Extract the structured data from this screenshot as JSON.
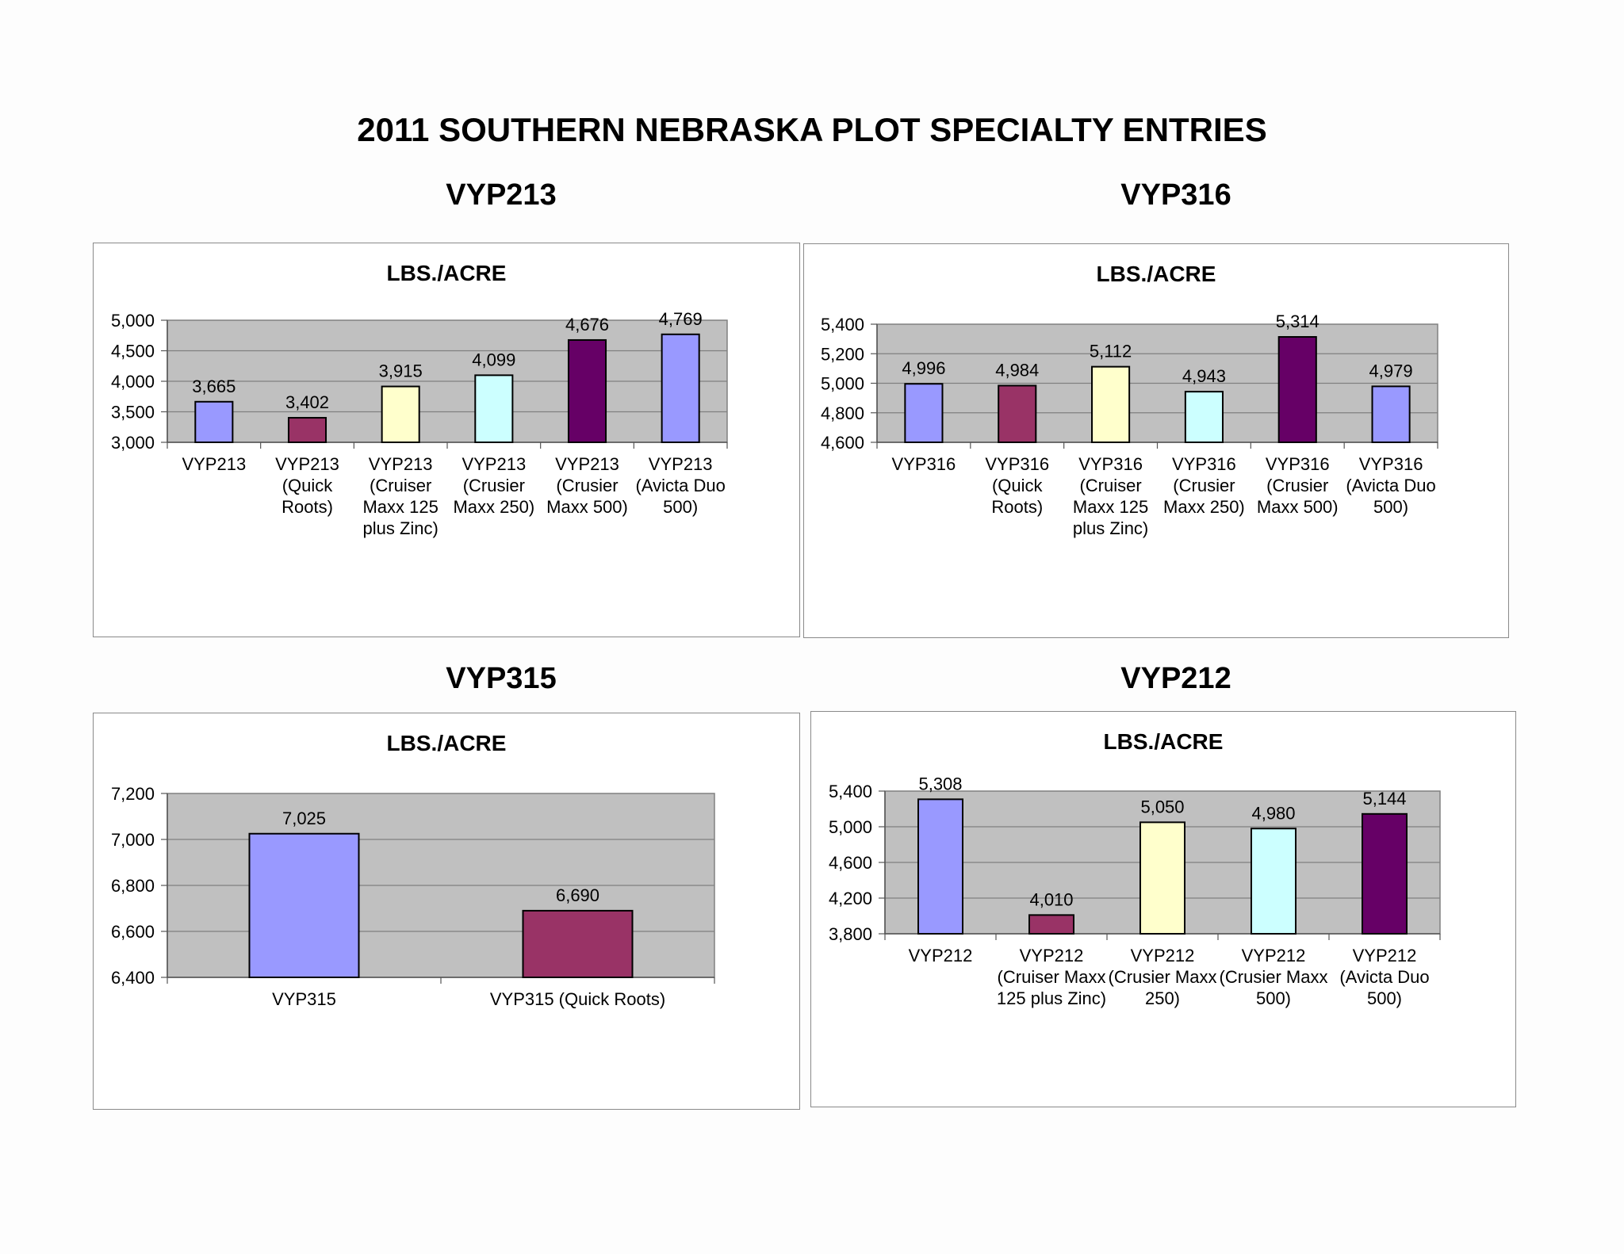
{
  "page": {
    "title": "2011 SOUTHERN NEBRASKA PLOT SPECIALTY ENTRIES"
  },
  "colors": {
    "plot_background": "#c0c0c0",
    "gridline": "#808080",
    "bar_outline": "#000000",
    "periwinkle": "#9999ff",
    "plum": "#993366",
    "light_yellow": "#ffffcc",
    "light_cyan": "#ccffff",
    "dark_purple": "#660066"
  },
  "chart_data": [
    {
      "type": "bar",
      "heading": "VYP213",
      "title": "LBS./ACRE",
      "categories": [
        "VYP213",
        "VYP213 (Quick Roots)",
        "VYP213 (Cruiser Maxx 125 plus Zinc)",
        "VYP213 (Crusier Maxx 250)",
        "VYP213 (Crusier Maxx 500)",
        "VYP213 (Avicta Duo 500)"
      ],
      "category_lines": [
        [
          "VYP213"
        ],
        [
          "VYP213",
          "(Quick",
          "Roots)"
        ],
        [
          "VYP213",
          "(Cruiser",
          "Maxx 125",
          "plus Zinc)"
        ],
        [
          "VYP213",
          "(Crusier",
          "Maxx 250)"
        ],
        [
          "VYP213",
          "(Crusier",
          "Maxx 500)"
        ],
        [
          "VYP213",
          "(Avicta Duo",
          "500)"
        ]
      ],
      "values": [
        3665,
        3402,
        3915,
        4099,
        4676,
        4769
      ],
      "value_labels": [
        "3,665",
        "3,402",
        "3,915",
        "4,099",
        "4,676",
        "4,769"
      ],
      "bar_colors": [
        "#9999ff",
        "#993366",
        "#ffffcc",
        "#ccffff",
        "#660066",
        "#9999ff"
      ],
      "ylim": [
        3000,
        5000
      ],
      "yticks": [
        3000,
        3500,
        4000,
        4500,
        5000
      ],
      "ytick_labels": [
        "3,000",
        "3,500",
        "4,000",
        "4,500",
        "5,000"
      ],
      "grid": true,
      "legend": "none"
    },
    {
      "type": "bar",
      "heading": "VYP316",
      "title": "LBS./ACRE",
      "categories": [
        "VYP316",
        "VYP316 (Quick Roots)",
        "VYP316 (Cruiser Maxx 125 plus Zinc)",
        "VYP316 (Crusier Maxx 250)",
        "VYP316 (Crusier Maxx 500)",
        "VYP316 (Avicta Duo 500)"
      ],
      "category_lines": [
        [
          "VYP316"
        ],
        [
          "VYP316",
          "(Quick",
          "Roots)"
        ],
        [
          "VYP316",
          "(Cruiser",
          "Maxx 125",
          "plus Zinc)"
        ],
        [
          "VYP316",
          "(Crusier",
          "Maxx 250)"
        ],
        [
          "VYP316",
          "(Crusier",
          "Maxx 500)"
        ],
        [
          "VYP316",
          "(Avicta Duo",
          "500)"
        ]
      ],
      "values": [
        4996,
        4984,
        5112,
        4943,
        5314,
        4979
      ],
      "value_labels": [
        "4,996",
        "4,984",
        "5,112",
        "4,943",
        "5,314",
        "4,979"
      ],
      "bar_colors": [
        "#9999ff",
        "#993366",
        "#ffffcc",
        "#ccffff",
        "#660066",
        "#9999ff"
      ],
      "ylim": [
        4600,
        5400
      ],
      "yticks": [
        4600,
        4800,
        5000,
        5200,
        5400
      ],
      "ytick_labels": [
        "4,600",
        "4,800",
        "5,000",
        "5,200",
        "5,400"
      ],
      "grid": true,
      "legend": "none"
    },
    {
      "type": "bar",
      "heading": "VYP315",
      "title": "LBS./ACRE",
      "categories": [
        "VYP315",
        "VYP315 (Quick Roots)"
      ],
      "category_lines": [
        [
          "VYP315"
        ],
        [
          "VYP315 (Quick Roots)"
        ]
      ],
      "values": [
        7025,
        6690
      ],
      "value_labels": [
        "7,025",
        "6,690"
      ],
      "bar_colors": [
        "#9999ff",
        "#993366"
      ],
      "ylim": [
        6400,
        7200
      ],
      "yticks": [
        6400,
        6600,
        6800,
        7000,
        7200
      ],
      "ytick_labels": [
        "6,400",
        "6,600",
        "6,800",
        "7,000",
        "7,200"
      ],
      "grid": true,
      "legend": "none"
    },
    {
      "type": "bar",
      "heading": "VYP212",
      "title": "LBS./ACRE",
      "categories": [
        "VYP212",
        "VYP212 (Cruiser Maxx 125 plus Zinc)",
        "VYP212 (Crusier Maxx 250)",
        "VYP212 (Crusier Maxx 500)",
        "VYP212 (Avicta Duo 500)"
      ],
      "category_lines": [
        [
          "VYP212"
        ],
        [
          "VYP212",
          "(Cruiser Maxx",
          "125 plus Zinc)"
        ],
        [
          "VYP212",
          "(Crusier Maxx",
          "250)"
        ],
        [
          "VYP212",
          "(Crusier Maxx",
          "500)"
        ],
        [
          "VYP212",
          "(Avicta Duo",
          "500)"
        ]
      ],
      "values": [
        5308,
        4010,
        5050,
        4980,
        5144
      ],
      "value_labels": [
        "5,308",
        "4,010",
        "5,050",
        "4,980",
        "5,144"
      ],
      "bar_colors": [
        "#9999ff",
        "#993366",
        "#ffffcc",
        "#ccffff",
        "#660066"
      ],
      "ylim": [
        3800,
        5400
      ],
      "yticks": [
        3800,
        4200,
        4600,
        5000,
        5400
      ],
      "ytick_labels": [
        "3,800",
        "4,200",
        "4,600",
        "5,000",
        "5,400"
      ],
      "grid": true,
      "legend": "none"
    }
  ]
}
